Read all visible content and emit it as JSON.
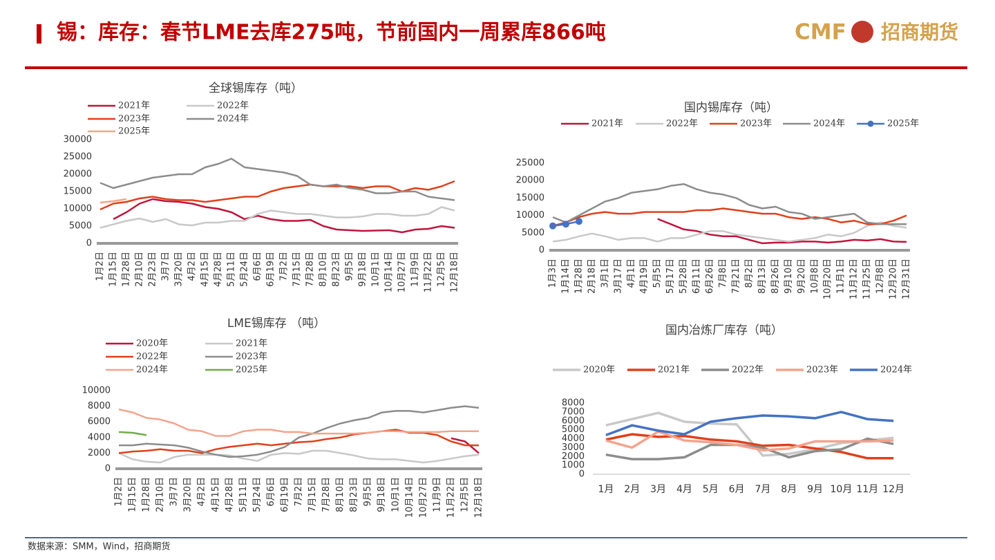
{
  "header": {
    "title": "锡：库存：春节LME去库275吨，节前国内一周累库866吨",
    "logo_en": "CMF",
    "logo_cn": "招商期货"
  },
  "footer": {
    "source": "数据来源：SMM，Wind，招商期货"
  },
  "chart_data": [
    {
      "type": "line",
      "title": "全球锡库存（吨）",
      "categories": [
        "1月2日",
        "1月15日",
        "1月28日",
        "2月10日",
        "2月23日",
        "3月7日",
        "3月20日",
        "4月2日",
        "4月15日",
        "4月28日",
        "5月11日",
        "5月24日",
        "6月6日",
        "6月19日",
        "7月2日",
        "7月15日",
        "7月28日",
        "8月10日",
        "8月23日",
        "9月5日",
        "9月18日",
        "10月1日",
        "10月14日",
        "10月27日",
        "11月9日",
        "11月22日",
        "12月5日",
        "12月18日"
      ],
      "ylim": [
        0,
        30000
      ],
      "yticks": [
        0,
        5000,
        10000,
        15000,
        20000,
        25000,
        30000
      ],
      "series": [
        {
          "name": "2021年",
          "color": "#c0143c",
          "values": [
            null,
            7000,
            9000,
            11500,
            12800,
            12200,
            12000,
            11500,
            10500,
            10000,
            9000,
            7000,
            8000,
            7000,
            6500,
            6500,
            6800,
            5000,
            4000,
            3800,
            3600,
            3700,
            3800,
            3200,
            4000,
            4200,
            5000,
            4500
          ]
        },
        {
          "name": "2022年",
          "color": "#c8c8c8",
          "values": [
            4500,
            5500,
            6500,
            7200,
            6200,
            7000,
            5500,
            5200,
            6000,
            6000,
            6500,
            6500,
            8500,
            9500,
            9000,
            8500,
            8500,
            8000,
            7500,
            7500,
            7800,
            8500,
            8500,
            8000,
            8000,
            8500,
            10500,
            9500
          ]
        },
        {
          "name": "2023年",
          "color": "#e0401a",
          "values": [
            9800,
            11500,
            12000,
            13000,
            13500,
            12800,
            12500,
            12500,
            12000,
            12500,
            13000,
            13500,
            13500,
            15000,
            16000,
            16500,
            17000,
            16500,
            16500,
            16500,
            16000,
            16500,
            16500,
            15000,
            16000,
            15500,
            16500,
            18000
          ]
        },
        {
          "name": "2024年",
          "color": "#8c8c8c",
          "values": [
            17500,
            16000,
            17000,
            18000,
            19000,
            19500,
            20000,
            20000,
            22000,
            23000,
            24500,
            22000,
            21500,
            21000,
            20500,
            19500,
            17000,
            16500,
            17000,
            16000,
            15500,
            14500,
            14500,
            15000,
            15000,
            13500,
            13000,
            12500
          ]
        },
        {
          "name": "2025年",
          "color": "#f4a38c",
          "values": [
            11800,
            12200,
            12800,
            null,
            null,
            null,
            null,
            null,
            null,
            null,
            null,
            null,
            null,
            null,
            null,
            null,
            null,
            null,
            null,
            null,
            null,
            null,
            null,
            null,
            null,
            null,
            null,
            null
          ]
        }
      ]
    },
    {
      "type": "line",
      "title": "国内锡库存（吨）",
      "categories": [
        "1月3日",
        "1月14日",
        "1月28日",
        "2月18日",
        "3月1日",
        "3月17日",
        "4月1日",
        "4月19日",
        "5月5日",
        "5月17日",
        "5月28日",
        "6月11日",
        "6月26日",
        "7月8日",
        "7月21日",
        "8月2日",
        "8月13日",
        "8月26日",
        "9月10日",
        "9月20日",
        "10月8日",
        "10月20日",
        "11月1日",
        "11月12日",
        "11月25日",
        "12月8日",
        "12月20日",
        "12月31日"
      ],
      "ylim": [
        0,
        25000
      ],
      "yticks": [
        0,
        5000,
        10000,
        15000,
        20000,
        25000
      ],
      "series": [
        {
          "name": "2021年",
          "color": "#c0143c",
          "values": [
            null,
            null,
            null,
            null,
            null,
            null,
            null,
            null,
            9000,
            7500,
            6000,
            5500,
            4500,
            4000,
            4000,
            3000,
            2000,
            2200,
            2200,
            2500,
            2500,
            2200,
            2500,
            3000,
            2800,
            3200,
            2500,
            2400
          ]
        },
        {
          "name": "2022年",
          "color": "#c8c8c8",
          "values": [
            2500,
            3000,
            4000,
            4800,
            4000,
            3000,
            3500,
            3500,
            2500,
            3500,
            3500,
            4500,
            5500,
            5500,
            4500,
            4000,
            3500,
            3000,
            2500,
            3000,
            3500,
            4500,
            4000,
            5000,
            7000,
            8000,
            7000,
            6500
          ]
        },
        {
          "name": "2023年",
          "color": "#e0401a",
          "values": [
            7000,
            8000,
            9500,
            10500,
            11000,
            10500,
            10500,
            11000,
            11000,
            11000,
            11000,
            11500,
            11500,
            12000,
            11500,
            11000,
            10500,
            10500,
            9500,
            9000,
            9500,
            9000,
            8000,
            8500,
            7500,
            7500,
            8500,
            10000
          ]
        },
        {
          "name": "2024年",
          "color": "#8c8c8c",
          "values": [
            9500,
            8000,
            10000,
            12000,
            14000,
            15000,
            16500,
            17000,
            17500,
            18500,
            19000,
            17500,
            16500,
            16000,
            15000,
            13000,
            12000,
            12500,
            11000,
            10500,
            9000,
            9500,
            10000,
            10500,
            8000,
            7500,
            7500,
            7500
          ]
        },
        {
          "name": "2025年",
          "color": "#4472c4",
          "markers": true,
          "values": [
            7000,
            7500,
            8300,
            null,
            null,
            null,
            null,
            null,
            null,
            null,
            null,
            null,
            null,
            null,
            null,
            null,
            null,
            null,
            null,
            null,
            null,
            null,
            null,
            null,
            null,
            null,
            null,
            null
          ]
        }
      ]
    },
    {
      "type": "line",
      "title": "LME锡库存 （吨）",
      "categories": [
        "1月2日",
        "1月15日",
        "1月28日",
        "2月10日",
        "3月7日",
        "3月20日",
        "4月2日",
        "4月15日",
        "4月28日",
        "5月11日",
        "5月24日",
        "6月6日",
        "6月19日",
        "7月2日",
        "7月15日",
        "7月28日",
        "8月10日",
        "8月23日",
        "9月5日",
        "9月18日",
        "10月1日",
        "10月14日",
        "10月27日",
        "11月9日",
        "11月22日",
        "12月5日",
        "12月18日"
      ],
      "ylim": [
        0,
        10000
      ],
      "yticks": [
        0,
        2000,
        4000,
        6000,
        8000,
        10000
      ],
      "series": [
        {
          "name": "2020年",
          "color": "#c0143c",
          "values": [
            null,
            null,
            null,
            null,
            null,
            null,
            null,
            null,
            null,
            null,
            null,
            null,
            null,
            null,
            null,
            null,
            null,
            null,
            null,
            null,
            null,
            null,
            null,
            null,
            3900,
            3500,
            2000
          ]
        },
        {
          "name": "2021年",
          "color": "#c8c8c8",
          "values": [
            2000,
            1200,
            900,
            800,
            1500,
            1800,
            1800,
            1800,
            1700,
            1300,
            1000,
            1800,
            2000,
            1900,
            2300,
            2300,
            2000,
            1700,
            1300,
            1200,
            1200,
            1000,
            800,
            1000,
            1300,
            1600,
            1800
          ]
        },
        {
          "name": "2022年",
          "color": "#e0401a",
          "values": [
            2000,
            2200,
            2300,
            2500,
            2300,
            2300,
            2000,
            2500,
            2800,
            3000,
            3200,
            3000,
            3200,
            3400,
            3500,
            3800,
            4000,
            4400,
            4600,
            4800,
            5000,
            4600,
            4600,
            4300,
            3500,
            3000,
            3000
          ]
        },
        {
          "name": "2023年",
          "color": "#8c8c8c",
          "values": [
            3000,
            3000,
            3200,
            3100,
            3000,
            2700,
            2200,
            1800,
            1500,
            1600,
            1800,
            2200,
            2800,
            4000,
            4500,
            5200,
            5800,
            6200,
            6500,
            7200,
            7400,
            7400,
            7200,
            7500,
            7800,
            8000,
            7800
          ]
        },
        {
          "name": "2024年",
          "color": "#f4a38c",
          "values": [
            7600,
            7200,
            6500,
            6300,
            5800,
            5000,
            4800,
            4200,
            4200,
            4800,
            5000,
            5000,
            4700,
            4700,
            4500,
            4500,
            4500,
            4500,
            4600,
            4800,
            4800,
            4700,
            4700,
            4700,
            4800,
            4800,
            4800
          ]
        },
        {
          "name": "2025年",
          "color": "#70ad47",
          "values": [
            4700,
            4600,
            4300,
            null,
            null,
            null,
            null,
            null,
            null,
            null,
            null,
            null,
            null,
            null,
            null,
            null,
            null,
            null,
            null,
            null,
            null,
            null,
            null,
            null,
            null,
            null,
            null
          ]
        }
      ]
    },
    {
      "type": "line",
      "title": "国内冶炼厂库存（吨）",
      "categories": [
        "1月",
        "2月",
        "3月",
        "4月",
        "5月",
        "6月",
        "7月",
        "8月",
        "9月",
        "10月",
        "11月",
        "12月"
      ],
      "ylim": [
        0,
        8000
      ],
      "yticks": [
        0,
        1000,
        2000,
        3000,
        4000,
        5000,
        6000,
        7000,
        8000
      ],
      "series": [
        {
          "name": "2020年",
          "color": "#c8c8c8",
          "values": [
            5500,
            6200,
            6900,
            5900,
            5700,
            5600,
            2100,
            2300,
            2800,
            3500,
            3800,
            4100
          ]
        },
        {
          "name": "2021年",
          "color": "#e0401a",
          "values": [
            3900,
            4500,
            4200,
            4300,
            3900,
            3700,
            3200,
            3300,
            2900,
            2500,
            1800,
            1800
          ]
        },
        {
          "name": "2022年",
          "color": "#8c8c8c",
          "values": [
            2200,
            1700,
            1700,
            1900,
            3300,
            3300,
            3000,
            1900,
            2600,
            2800,
            4000,
            3400
          ]
        },
        {
          "name": "2023年",
          "color": "#f4a38c",
          "values": [
            3800,
            3000,
            4800,
            3800,
            3600,
            3300,
            2700,
            2900,
            3700,
            3700,
            3700,
            3800
          ]
        },
        {
          "name": "2024年",
          "color": "#4472c4",
          "values": [
            4400,
            5500,
            4900,
            4500,
            5900,
            6300,
            6600,
            6500,
            6300,
            7000,
            6200,
            6000
          ]
        }
      ]
    }
  ]
}
